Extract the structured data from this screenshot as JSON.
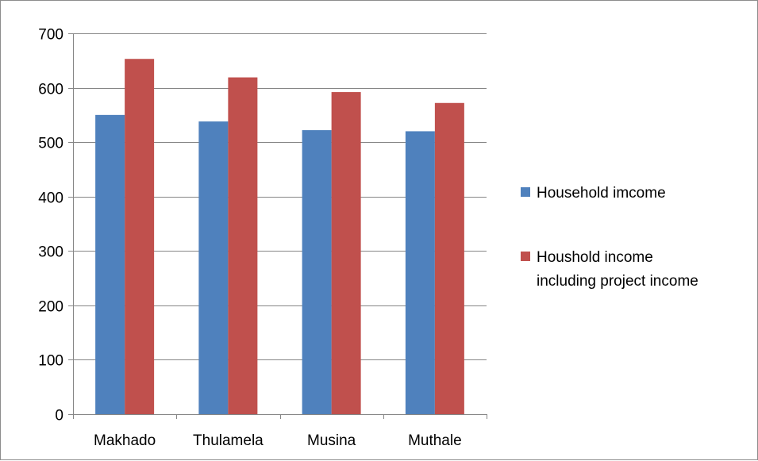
{
  "chart_data": {
    "type": "bar",
    "title": "",
    "xlabel": "",
    "ylabel": "",
    "categories": [
      "Makhado",
      "Thulamela",
      "Musina",
      "Muthale"
    ],
    "series": [
      {
        "name": "Household imcome",
        "values": [
          550,
          538,
          522,
          520
        ],
        "color": "#4f81bd"
      },
      {
        "name": "Houshold income including project income",
        "values": [
          653,
          619,
          592,
          572
        ],
        "color": "#c0504d"
      }
    ],
    "legend_lines": [
      [
        "Household imcome"
      ],
      [
        "Houshold income",
        "including project income"
      ]
    ],
    "ylim": [
      0,
      700
    ],
    "yticks": [
      0,
      100,
      200,
      300,
      400,
      500,
      600,
      700
    ],
    "grid": true,
    "legend_position": "right"
  },
  "colors": {
    "gridline": "#868686",
    "axis": "#868686",
    "frame": "#8c8c8c"
  }
}
